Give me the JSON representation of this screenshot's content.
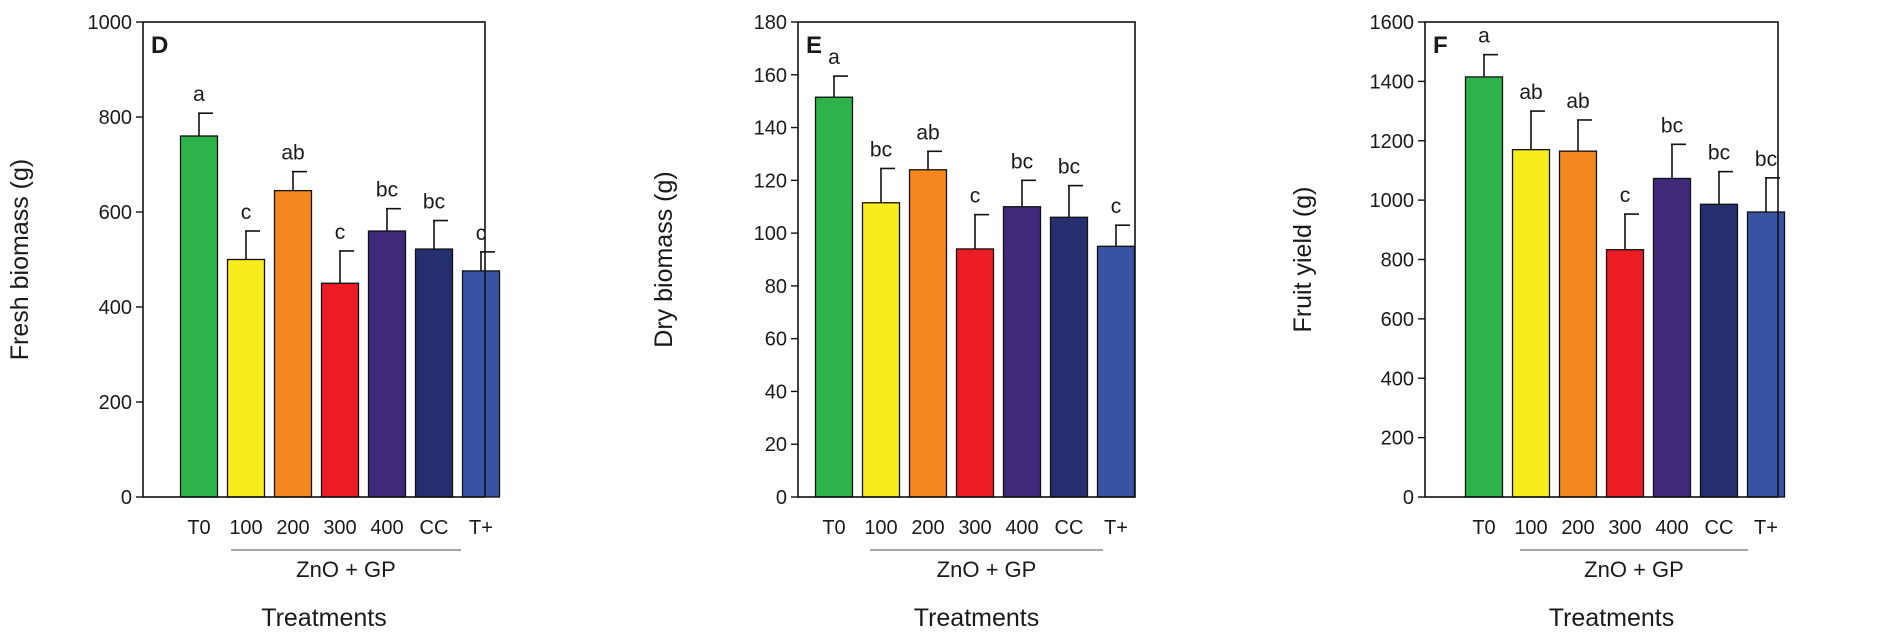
{
  "colors": [
    "#2cb34a",
    "#f7ec1c",
    "#f4861f",
    "#ec1c24",
    "#3f2a7a",
    "#252e6e",
    "#3853a4"
  ],
  "chart_data": [
    {
      "type": "bar",
      "panel": "D",
      "ylabel": "Fresh biomass (g)",
      "xlabel": "Treatments",
      "group_label": "ZnO + GP",
      "categories": [
        "T0",
        "100",
        "200",
        "300",
        "400",
        "CC",
        "T+"
      ],
      "values": [
        760,
        500,
        645,
        450,
        560,
        522,
        476
      ],
      "errors": [
        48,
        60,
        40,
        68,
        47,
        60,
        40
      ],
      "letters": [
        "a",
        "c",
        "ab",
        "c",
        "bc",
        "bc",
        "c"
      ],
      "ylim": [
        0,
        1000
      ],
      "yticks": [
        0,
        200,
        400,
        600,
        800,
        1000
      ],
      "ytick_labels": [
        "0",
        "200",
        "400",
        "600",
        "800",
        "1000"
      ]
    },
    {
      "type": "bar",
      "panel": "E",
      "ylabel": "Dry biomass (g)",
      "xlabel": "Treatments",
      "group_label": "ZnO + GP",
      "categories": [
        "T0",
        "100",
        "200",
        "300",
        "400",
        "CC",
        "T+"
      ],
      "values": [
        151.5,
        111.5,
        124,
        94,
        110,
        106,
        95
      ],
      "errors": [
        8,
        13,
        7,
        13,
        10,
        12,
        8
      ],
      "letters": [
        "a",
        "bc",
        "ab",
        "c",
        "bc",
        "bc",
        "c"
      ],
      "ylim": [
        0,
        180
      ],
      "yticks": [
        0,
        20,
        40,
        60,
        80,
        100,
        120,
        140,
        160,
        180
      ],
      "ytick_labels": [
        "0",
        "20",
        "40",
        "60",
        "80",
        "100",
        "120",
        "140",
        "160",
        "180"
      ]
    },
    {
      "type": "bar",
      "panel": "F",
      "ylabel": "Fruit yield (g)",
      "xlabel": "Treatments",
      "group_label": "ZnO + GP",
      "categories": [
        "T0",
        "100",
        "200",
        "300",
        "400",
        "CC",
        "T+"
      ],
      "values": [
        1415,
        1170,
        1165,
        833,
        1073,
        986,
        960
      ],
      "errors": [
        75,
        130,
        105,
        120,
        115,
        110,
        115
      ],
      "letters": [
        "a",
        "ab",
        "ab",
        "c",
        "bc",
        "bc",
        "bc"
      ],
      "ylim": [
        0,
        1600
      ],
      "yticks": [
        0,
        200,
        400,
        600,
        800,
        1000,
        1200,
        1400,
        1600
      ],
      "ytick_labels": [
        "0",
        "200",
        "400",
        "600",
        "800",
        "1000",
        "1200",
        "1400",
        "1600"
      ]
    }
  ]
}
